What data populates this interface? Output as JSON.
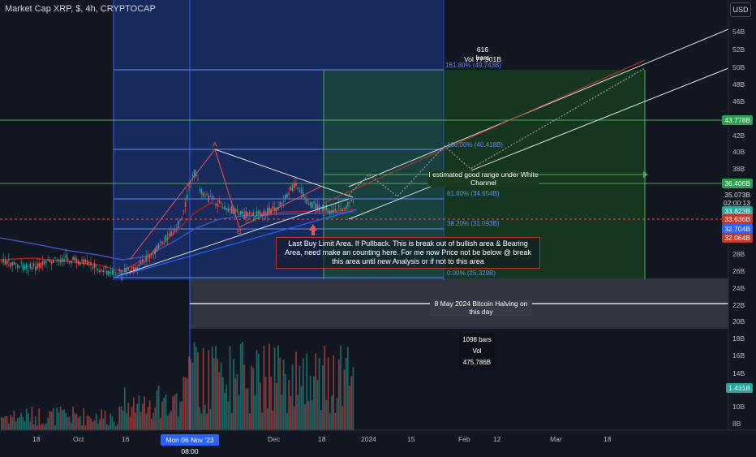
{
  "header": {
    "title": "Market Cap XRP, $, 4h, CRYPTOCAP",
    "currency_button": "USD"
  },
  "price_axis": {
    "ticks": [
      "54B",
      "52B",
      "50B",
      "48B",
      "46B",
      "42B",
      "40B",
      "38B",
      "28B",
      "26B",
      "24B",
      "22B",
      "20B",
      "18B",
      "16B",
      "14B",
      "10B",
      "8B"
    ],
    "labels": [
      {
        "text": "43.778B",
        "color": "#2e9e4f"
      },
      {
        "text": "36.406B",
        "color": "#2e9e4f"
      },
      {
        "text": "35.073B",
        "color": "#131722"
      },
      {
        "text": "02:00:13",
        "color": "#131722"
      },
      {
        "text": "33.823B",
        "color": "#26a69a"
      },
      {
        "text": "33.636B",
        "color": "#c0392b"
      },
      {
        "text": "32.704B",
        "color": "#2962ff"
      },
      {
        "text": "32.064B",
        "color": "#c0392b"
      },
      {
        "text": "1.431B",
        "color": "#26a69a"
      }
    ]
  },
  "time_axis": {
    "labels": [
      "18",
      "Oct",
      "16",
      "Dec",
      "18",
      "2024",
      "15",
      "Feb",
      "12",
      "Mar",
      "18"
    ],
    "highlight": "Mon 06 Nov '23   08:00"
  },
  "annotations": {
    "fib_bars": "616 bars",
    "fib_vol": "Vol 77.501B",
    "fib_161": "161.80% (49.743B)",
    "fib_100": "100.00% (40.418B)",
    "fib_618": "61.80% (34.654B)",
    "fib_382": "38.20% (31.093B)",
    "fib_0": "0.00% (25.329B)",
    "range_note": "I estimated good range under White Channel",
    "callout": "Last Buy Limit Area. If Pullback. This is break out of bullish area & Bearing Area, need make an counting here. For me now Price not be below @ break this area until new Analysis or if not to this area",
    "halving": "8 May 2024 Bitcoin Halving on this day",
    "range_bars": "1098 bars",
    "range_vol": "Vol 475.786B",
    "wave_a": "A",
    "wave_b": "B"
  },
  "chart_data": {
    "type": "candlestick",
    "symbol": "Market Cap XRP",
    "interval": "4h",
    "ylim_billions": [
      8,
      55
    ],
    "fib_levels_billions": [
      25.329,
      31.093,
      34.654,
      40.418,
      49.743
    ],
    "horizontal_levels_billions": [
      43.778,
      36.406,
      33.636
    ],
    "last_price_billions": 35.073,
    "volume_last_billions": 1.431,
    "colors": {
      "up": "#26a69a",
      "down": "#ef5350",
      "fib_zone": "#1e3a8a",
      "target_zone": "#1b5e20"
    }
  }
}
